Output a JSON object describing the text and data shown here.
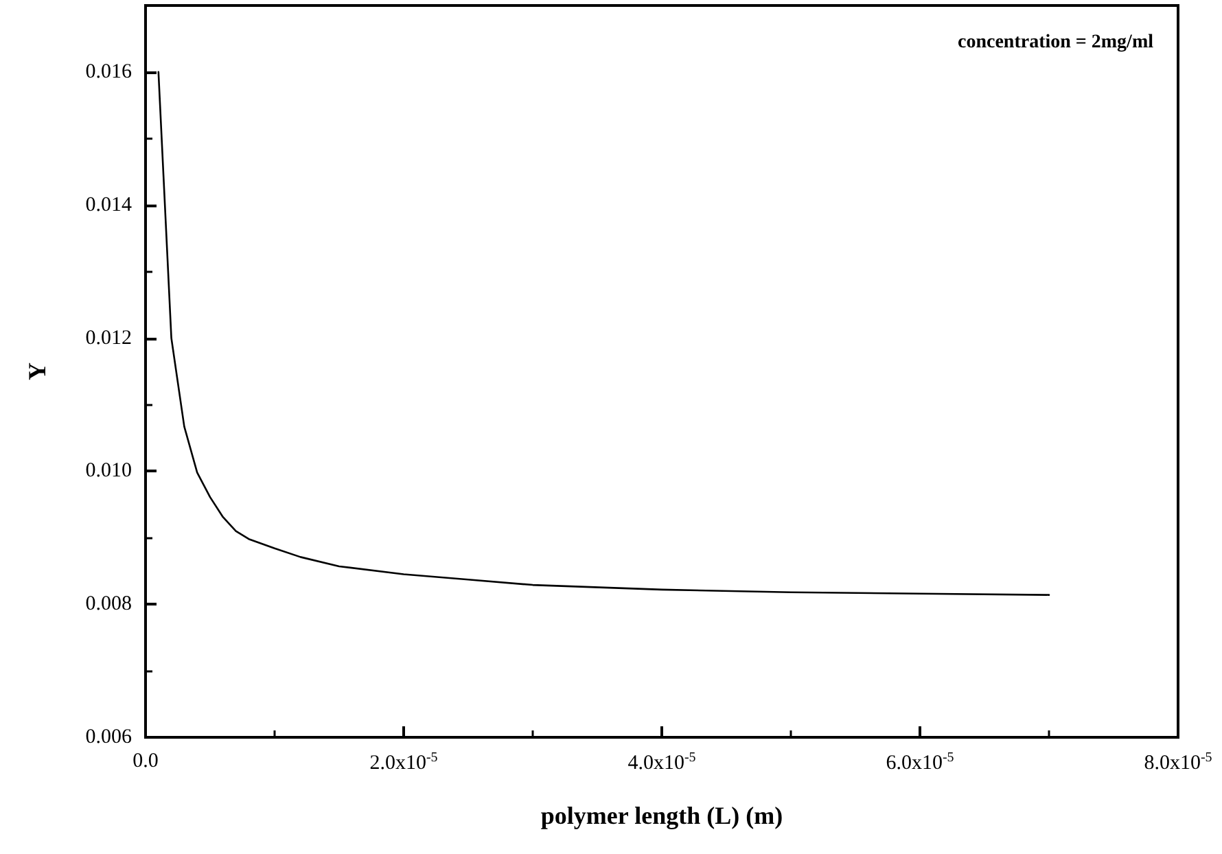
{
  "chart_data": {
    "type": "line",
    "xlabel": "polymer length (L) (m)",
    "ylabel": "Y",
    "annotations": [
      "concentration = 2mg/ml"
    ],
    "x": [
      1e-06,
      2e-06,
      3e-06,
      4e-06,
      5e-06,
      6e-06,
      7e-06,
      8e-06,
      1e-05,
      1.2e-05,
      1.5e-05,
      2e-05,
      2.5e-05,
      3e-05,
      4e-05,
      5e-05,
      6e-05,
      7e-05
    ],
    "series": [
      {
        "color": "#000000",
        "values": [
          0.016,
          0.012,
          0.01067,
          0.00998,
          0.00961,
          0.00931,
          0.0091,
          0.00898,
          0.00884,
          0.00871,
          0.00857,
          0.00845,
          0.00837,
          0.00829,
          0.00822,
          0.00818,
          0.00816,
          0.00814
        ]
      }
    ],
    "xlim": [
      0,
      8e-05
    ],
    "xticks": [
      {
        "value": 0,
        "label": "0.0"
      },
      {
        "value": 2e-05,
        "label": "2.0x10$^{-5}$"
      },
      {
        "value": 4e-05,
        "label": "4.0x10$^{-5}$"
      },
      {
        "value": 6e-05,
        "label": "6.0x10$^{-5}$"
      },
      {
        "value": 8e-05,
        "label": "8.0x10$^{-5}$"
      }
    ],
    "ylim": [
      0.006,
      0.017
    ],
    "yticks": [
      {
        "value": 0.006,
        "label": "0.006"
      },
      {
        "value": 0.008,
        "label": "0.008"
      },
      {
        "value": 0.01,
        "label": "0.010"
      },
      {
        "value": 0.012,
        "label": "0.012"
      },
      {
        "value": 0.014,
        "label": "0.014"
      },
      {
        "value": 0.016,
        "label": "0.016"
      }
    ],
    "grid": false,
    "marker": "none",
    "line_style": "solid"
  }
}
